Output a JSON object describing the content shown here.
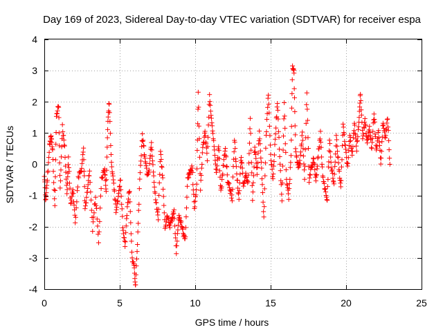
{
  "chart_data": {
    "type": "scatter",
    "title": "Day 169 of 2023, Sidereal Day-to-day VTEC variation (SDTVAR) for receiver espa",
    "xlabel": "GPS time / hours",
    "ylabel": "SDTVAR / TECUs",
    "xlim": [
      0,
      25
    ],
    "ylim": [
      -4,
      4
    ],
    "xticks": [
      0,
      5,
      10,
      15,
      20,
      25
    ],
    "yticks": [
      -4,
      -3,
      -2,
      -1,
      0,
      1,
      2,
      3,
      4
    ],
    "xtick_labels": [
      "0",
      "5",
      "10",
      "15",
      "20",
      "25"
    ],
    "ytick_labels": [
      "-4",
      "-3",
      "-2",
      "-1",
      "0",
      "1",
      "2",
      "3",
      "4"
    ],
    "grid": true,
    "marker": "plus",
    "color": "#ff0000",
    "series": [
      {
        "name": "SDTVAR",
        "anchors": [
          [
            0.0,
            -0.3
          ],
          [
            0.1,
            -1.2
          ],
          [
            0.2,
            -0.5
          ],
          [
            0.35,
            0.6
          ],
          [
            0.45,
            1.0
          ],
          [
            0.55,
            0.4
          ],
          [
            0.7,
            -1.4
          ],
          [
            0.8,
            1.6
          ],
          [
            0.95,
            1.9
          ],
          [
            1.05,
            -0.8
          ],
          [
            1.2,
            1.2
          ],
          [
            1.35,
            0.5
          ],
          [
            1.5,
            -1.0
          ],
          [
            1.6,
            0.2
          ],
          [
            1.75,
            -1.3
          ],
          [
            1.9,
            -0.8
          ],
          [
            2.05,
            -1.9
          ],
          [
            2.25,
            -0.4
          ],
          [
            2.45,
            -0.2
          ],
          [
            2.6,
            0.5
          ],
          [
            2.7,
            -1.4
          ],
          [
            2.85,
            -0.9
          ],
          [
            3.0,
            -0.2
          ],
          [
            3.2,
            -2.1
          ],
          [
            3.4,
            -1.0
          ],
          [
            3.6,
            -2.5
          ],
          [
            3.8,
            -0.4
          ],
          [
            4.0,
            -0.2
          ],
          [
            4.1,
            -0.8
          ],
          [
            4.2,
            1.2
          ],
          [
            4.3,
            2.0
          ],
          [
            4.45,
            0.0
          ],
          [
            4.6,
            -0.6
          ],
          [
            4.75,
            -1.5
          ],
          [
            4.9,
            -1.1
          ],
          [
            5.05,
            -0.5
          ],
          [
            5.2,
            -2.0
          ],
          [
            5.35,
            -2.6
          ],
          [
            5.5,
            -1.4
          ],
          [
            5.65,
            -0.8
          ],
          [
            5.8,
            -2.9
          ],
          [
            5.95,
            -3.3
          ],
          [
            6.05,
            -3.9
          ],
          [
            6.2,
            -2.2
          ],
          [
            6.35,
            -0.2
          ],
          [
            6.5,
            0.9
          ],
          [
            6.65,
            0.3
          ],
          [
            6.8,
            -0.3
          ],
          [
            6.95,
            -0.2
          ],
          [
            7.1,
            0.7
          ],
          [
            7.25,
            -0.4
          ],
          [
            7.4,
            -1.2
          ],
          [
            7.55,
            -1.8
          ],
          [
            7.7,
            0.5
          ],
          [
            7.85,
            -0.5
          ],
          [
            8.0,
            -2.1
          ],
          [
            8.15,
            -1.6
          ],
          [
            8.3,
            -2.0
          ],
          [
            8.45,
            -1.8
          ],
          [
            8.6,
            -1.5
          ],
          [
            8.75,
            -2.8
          ],
          [
            8.9,
            -1.7
          ],
          [
            9.05,
            -1.8
          ],
          [
            9.2,
            -2.2
          ],
          [
            9.35,
            -2.4
          ],
          [
            9.5,
            -0.4
          ],
          [
            9.65,
            -0.3
          ],
          [
            9.8,
            -0.1
          ],
          [
            9.95,
            -1.5
          ],
          [
            10.1,
            -0.6
          ],
          [
            10.2,
            2.3
          ],
          [
            10.35,
            -0.8
          ],
          [
            10.5,
            0.5
          ],
          [
            10.65,
            1.0
          ],
          [
            10.8,
            0.2
          ],
          [
            10.95,
            2.2
          ],
          [
            11.1,
            1.3
          ],
          [
            11.25,
            0.6
          ],
          [
            11.4,
            -0.3
          ],
          [
            11.55,
            0.6
          ],
          [
            11.7,
            -0.9
          ],
          [
            11.85,
            -0.1
          ],
          [
            12.0,
            0.5
          ],
          [
            12.15,
            -0.5
          ],
          [
            12.3,
            -0.8
          ],
          [
            12.45,
            -1.1
          ],
          [
            12.6,
            0.8
          ],
          [
            12.75,
            -0.3
          ],
          [
            12.9,
            -1.1
          ],
          [
            13.05,
            0.3
          ],
          [
            13.2,
            -0.7
          ],
          [
            13.35,
            -0.3
          ],
          [
            13.5,
            -0.6
          ],
          [
            13.65,
            1.4
          ],
          [
            13.8,
            -1.2
          ],
          [
            13.95,
            0.6
          ],
          [
            14.1,
            -0.3
          ],
          [
            14.25,
            1.0
          ],
          [
            14.4,
            -0.2
          ],
          [
            14.55,
            -1.7
          ],
          [
            14.7,
            0.9
          ],
          [
            14.85,
            2.3
          ],
          [
            15.0,
            0.3
          ],
          [
            15.15,
            -0.5
          ],
          [
            15.3,
            0.8
          ],
          [
            15.45,
            2.0
          ],
          [
            15.6,
            0.2
          ],
          [
            15.75,
            -1.1
          ],
          [
            15.9,
            1.9
          ],
          [
            16.05,
            -0.5
          ],
          [
            16.2,
            -1.1
          ],
          [
            16.35,
            0.3
          ],
          [
            16.45,
            3.2
          ],
          [
            16.55,
            2.9
          ],
          [
            16.65,
            0.5
          ],
          [
            16.8,
            -0.1
          ],
          [
            16.95,
            0.1
          ],
          [
            17.1,
            1.0
          ],
          [
            17.25,
            -0.5
          ],
          [
            17.4,
            2.3
          ],
          [
            17.55,
            -0.5
          ],
          [
            17.7,
            -0.1
          ],
          [
            17.85,
            0.2
          ],
          [
            18.0,
            -0.6
          ],
          [
            18.15,
            0.3
          ],
          [
            18.3,
            1.0
          ],
          [
            18.45,
            -0.4
          ],
          [
            18.6,
            -0.8
          ],
          [
            18.75,
            -1.1
          ],
          [
            18.9,
            0.8
          ],
          [
            19.05,
            -0.2
          ],
          [
            19.2,
            -0.6
          ],
          [
            19.35,
            0.9
          ],
          [
            19.5,
            0.0
          ],
          [
            19.65,
            -0.8
          ],
          [
            19.8,
            1.2
          ],
          [
            19.95,
            0.6
          ],
          [
            20.1,
            -0.1
          ],
          [
            20.25,
            1.0
          ],
          [
            20.4,
            0.3
          ],
          [
            20.55,
            1.3
          ],
          [
            20.7,
            0.5
          ],
          [
            20.85,
            1.4
          ],
          [
            20.95,
            2.3
          ],
          [
            21.1,
            0.8
          ],
          [
            21.25,
            1.4
          ],
          [
            21.4,
            0.7
          ],
          [
            21.55,
            1.2
          ],
          [
            21.7,
            0.5
          ],
          [
            21.85,
            1.7
          ],
          [
            22.0,
            0.4
          ],
          [
            22.15,
            1.1
          ],
          [
            22.3,
            0.0
          ],
          [
            22.45,
            1.4
          ],
          [
            22.6,
            0.8
          ],
          [
            22.75,
            1.5
          ],
          [
            22.9,
            0.0
          ]
        ]
      }
    ]
  }
}
